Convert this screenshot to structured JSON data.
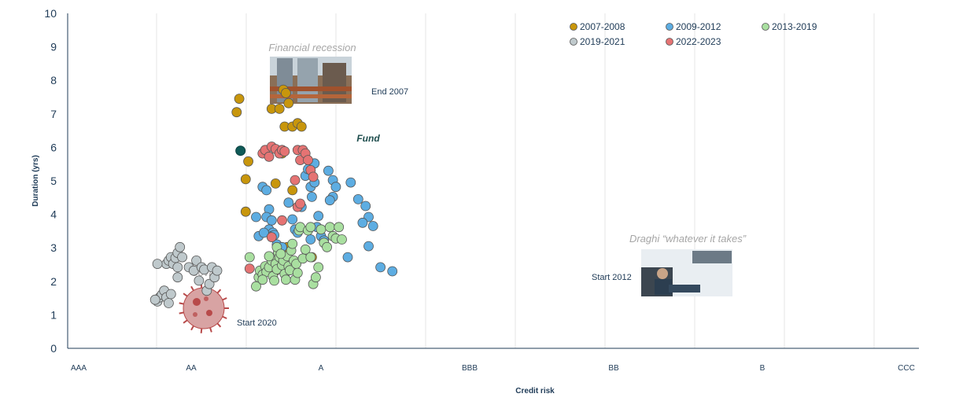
{
  "chart_data": {
    "type": "scatter",
    "xlabel": "Credit risk",
    "ylabel": "Duration (yrs)",
    "ylim": [
      0,
      10
    ],
    "yticks": [
      "0",
      "1",
      "2",
      "3",
      "4",
      "5",
      "6",
      "7",
      "8",
      "9",
      "10"
    ],
    "xticks": [
      "AAA",
      "AA",
      "A",
      "BBB",
      "BB",
      "B",
      "CCC"
    ],
    "legend_position": "top-right",
    "series": [
      {
        "name": "2007-2008",
        "color": "#c8960c",
        "points": [
          [
            1.35,
            7.05
          ],
          [
            1.37,
            7.45
          ],
          [
            1.44,
            5.58
          ],
          [
            1.42,
            5.05
          ],
          [
            1.42,
            4.08
          ],
          [
            1.62,
            7.15
          ],
          [
            1.68,
            7.15
          ],
          [
            1.71,
            7.72
          ],
          [
            1.73,
            7.62
          ],
          [
            1.75,
            7.32
          ],
          [
            1.72,
            6.62
          ],
          [
            1.78,
            6.62
          ],
          [
            1.82,
            6.72
          ],
          [
            1.85,
            6.62
          ],
          [
            1.7,
            5.82
          ],
          [
            1.65,
            4.92
          ],
          [
            1.78,
            4.72
          ],
          [
            1.93,
            2.72
          ],
          [
            1.74,
            3.02
          ],
          [
            1.65,
            2.32
          ]
        ]
      },
      {
        "name": "2009-2012",
        "color": "#5dade2",
        "points": [
          [
            1.5,
            3.92
          ],
          [
            1.52,
            3.35
          ],
          [
            1.55,
            4.82
          ],
          [
            1.58,
            4.72
          ],
          [
            1.6,
            4.15
          ],
          [
            1.58,
            3.92
          ],
          [
            1.62,
            3.82
          ],
          [
            1.6,
            3.55
          ],
          [
            1.63,
            3.45
          ],
          [
            1.62,
            3.35
          ],
          [
            1.66,
            3.1
          ],
          [
            1.7,
            3.02
          ],
          [
            1.75,
            4.35
          ],
          [
            1.78,
            3.85
          ],
          [
            1.8,
            3.55
          ],
          [
            1.82,
            3.45
          ],
          [
            1.85,
            4.22
          ],
          [
            1.88,
            5.15
          ],
          [
            1.9,
            5.35
          ],
          [
            1.92,
            4.82
          ],
          [
            1.95,
            5.52
          ],
          [
            1.93,
            4.52
          ],
          [
            1.98,
            3.95
          ],
          [
            2.0,
            3.35
          ],
          [
            1.92,
            3.25
          ],
          [
            2.05,
            5.3
          ],
          [
            2.08,
            5.02
          ],
          [
            2.1,
            4.82
          ],
          [
            2.08,
            4.52
          ],
          [
            2.06,
            4.42
          ],
          [
            2.2,
            4.95
          ],
          [
            2.25,
            4.45
          ],
          [
            2.3,
            4.25
          ],
          [
            2.32,
            3.92
          ],
          [
            2.28,
            3.75
          ],
          [
            2.35,
            3.65
          ],
          [
            2.18,
            2.72
          ],
          [
            2.32,
            3.05
          ],
          [
            2.4,
            2.42
          ],
          [
            2.48,
            2.3
          ],
          [
            1.56,
            3.45
          ],
          [
            1.64,
            3.38
          ],
          [
            1.95,
            4.95
          ],
          [
            1.97,
            3.62
          ],
          [
            2.02,
            3.22
          ]
        ]
      },
      {
        "name": "2013-2019",
        "color": "#a9dfa0",
        "points": [
          [
            1.45,
            2.72
          ],
          [
            1.5,
            1.85
          ],
          [
            1.52,
            2.12
          ],
          [
            1.53,
            2.32
          ],
          [
            1.55,
            2.2
          ],
          [
            1.57,
            2.45
          ],
          [
            1.58,
            2.28
          ],
          [
            1.6,
            2.42
          ],
          [
            1.62,
            2.62
          ],
          [
            1.63,
            2.15
          ],
          [
            1.64,
            2.02
          ],
          [
            1.65,
            2.52
          ],
          [
            1.66,
            2.36
          ],
          [
            1.67,
            2.86
          ],
          [
            1.68,
            2.72
          ],
          [
            1.7,
            2.48
          ],
          [
            1.71,
            2.62
          ],
          [
            1.72,
            2.22
          ],
          [
            1.73,
            2.05
          ],
          [
            1.74,
            2.75
          ],
          [
            1.75,
            2.45
          ],
          [
            1.76,
            2.33
          ],
          [
            1.77,
            2.92
          ],
          [
            1.78,
            3.12
          ],
          [
            1.79,
            2.62
          ],
          [
            1.8,
            2.05
          ],
          [
            1.81,
            2.52
          ],
          [
            1.82,
            2.25
          ],
          [
            1.83,
            3.52
          ],
          [
            1.84,
            3.62
          ],
          [
            1.86,
            2.68
          ],
          [
            1.88,
            2.95
          ],
          [
            1.9,
            3.52
          ],
          [
            1.92,
            3.62
          ],
          [
            1.94,
            1.92
          ],
          [
            1.96,
            2.12
          ],
          [
            1.98,
            2.42
          ],
          [
            2.0,
            3.55
          ],
          [
            2.02,
            3.15
          ],
          [
            2.04,
            3.02
          ],
          [
            2.06,
            3.62
          ],
          [
            2.08,
            3.35
          ],
          [
            2.1,
            3.28
          ],
          [
            2.12,
            3.62
          ],
          [
            2.14,
            3.25
          ],
          [
            1.66,
            3.02
          ],
          [
            1.69,
            2.82
          ],
          [
            1.6,
            2.75
          ],
          [
            1.55,
            2.05
          ],
          [
            1.92,
            2.72
          ]
        ]
      },
      {
        "name": "2019-2021",
        "color": "#bfc9cc",
        "points": [
          [
            0.7,
            1.4
          ],
          [
            0.72,
            1.52
          ],
          [
            0.74,
            1.6
          ],
          [
            0.76,
            1.72
          ],
          [
            0.78,
            1.52
          ],
          [
            0.8,
            1.35
          ],
          [
            0.82,
            1.62
          ],
          [
            0.78,
            2.52
          ],
          [
            0.8,
            2.62
          ],
          [
            0.82,
            2.72
          ],
          [
            0.84,
            2.52
          ],
          [
            0.86,
            2.7
          ],
          [
            0.88,
            2.85
          ],
          [
            0.9,
            3.02
          ],
          [
            0.92,
            2.72
          ],
          [
            0.88,
            2.42
          ],
          [
            0.88,
            2.12
          ],
          [
            0.98,
            2.42
          ],
          [
            1.02,
            2.32
          ],
          [
            1.04,
            2.62
          ],
          [
            1.06,
            2.02
          ],
          [
            1.08,
            2.42
          ],
          [
            1.1,
            2.35
          ],
          [
            1.12,
            1.72
          ],
          [
            1.14,
            1.92
          ],
          [
            1.16,
            2.42
          ],
          [
            1.18,
            2.12
          ],
          [
            1.2,
            2.32
          ],
          [
            0.68,
            1.45
          ],
          [
            0.7,
            2.52
          ]
        ]
      },
      {
        "name": "2022-2023",
        "color": "#e57373",
        "points": [
          [
            1.55,
            5.82
          ],
          [
            1.57,
            5.92
          ],
          [
            1.6,
            5.72
          ],
          [
            1.62,
            6.02
          ],
          [
            1.65,
            5.95
          ],
          [
            1.68,
            5.82
          ],
          [
            1.7,
            5.92
          ],
          [
            1.72,
            5.88
          ],
          [
            1.82,
            5.92
          ],
          [
            1.84,
            5.62
          ],
          [
            1.86,
            5.92
          ],
          [
            1.88,
            5.82
          ],
          [
            1.9,
            5.62
          ],
          [
            1.92,
            5.32
          ],
          [
            1.94,
            5.12
          ],
          [
            1.8,
            5.02
          ],
          [
            1.82,
            4.22
          ],
          [
            1.84,
            4.32
          ],
          [
            1.7,
            3.82
          ],
          [
            1.62,
            3.32
          ],
          [
            1.45,
            2.38
          ]
        ]
      }
    ],
    "fund": {
      "name": "Fund",
      "x": 1.38,
      "y": 5.9,
      "color": "#0f5a57"
    },
    "annotations": {
      "financial_recession": "Financial recession",
      "end_2007": "End 2007",
      "fund_label": "Fund",
      "draghi": "Draghi “whatever it takes”",
      "start_2012": "Start 2012",
      "covid": "Covid",
      "start_2020": "Start 2020"
    }
  }
}
